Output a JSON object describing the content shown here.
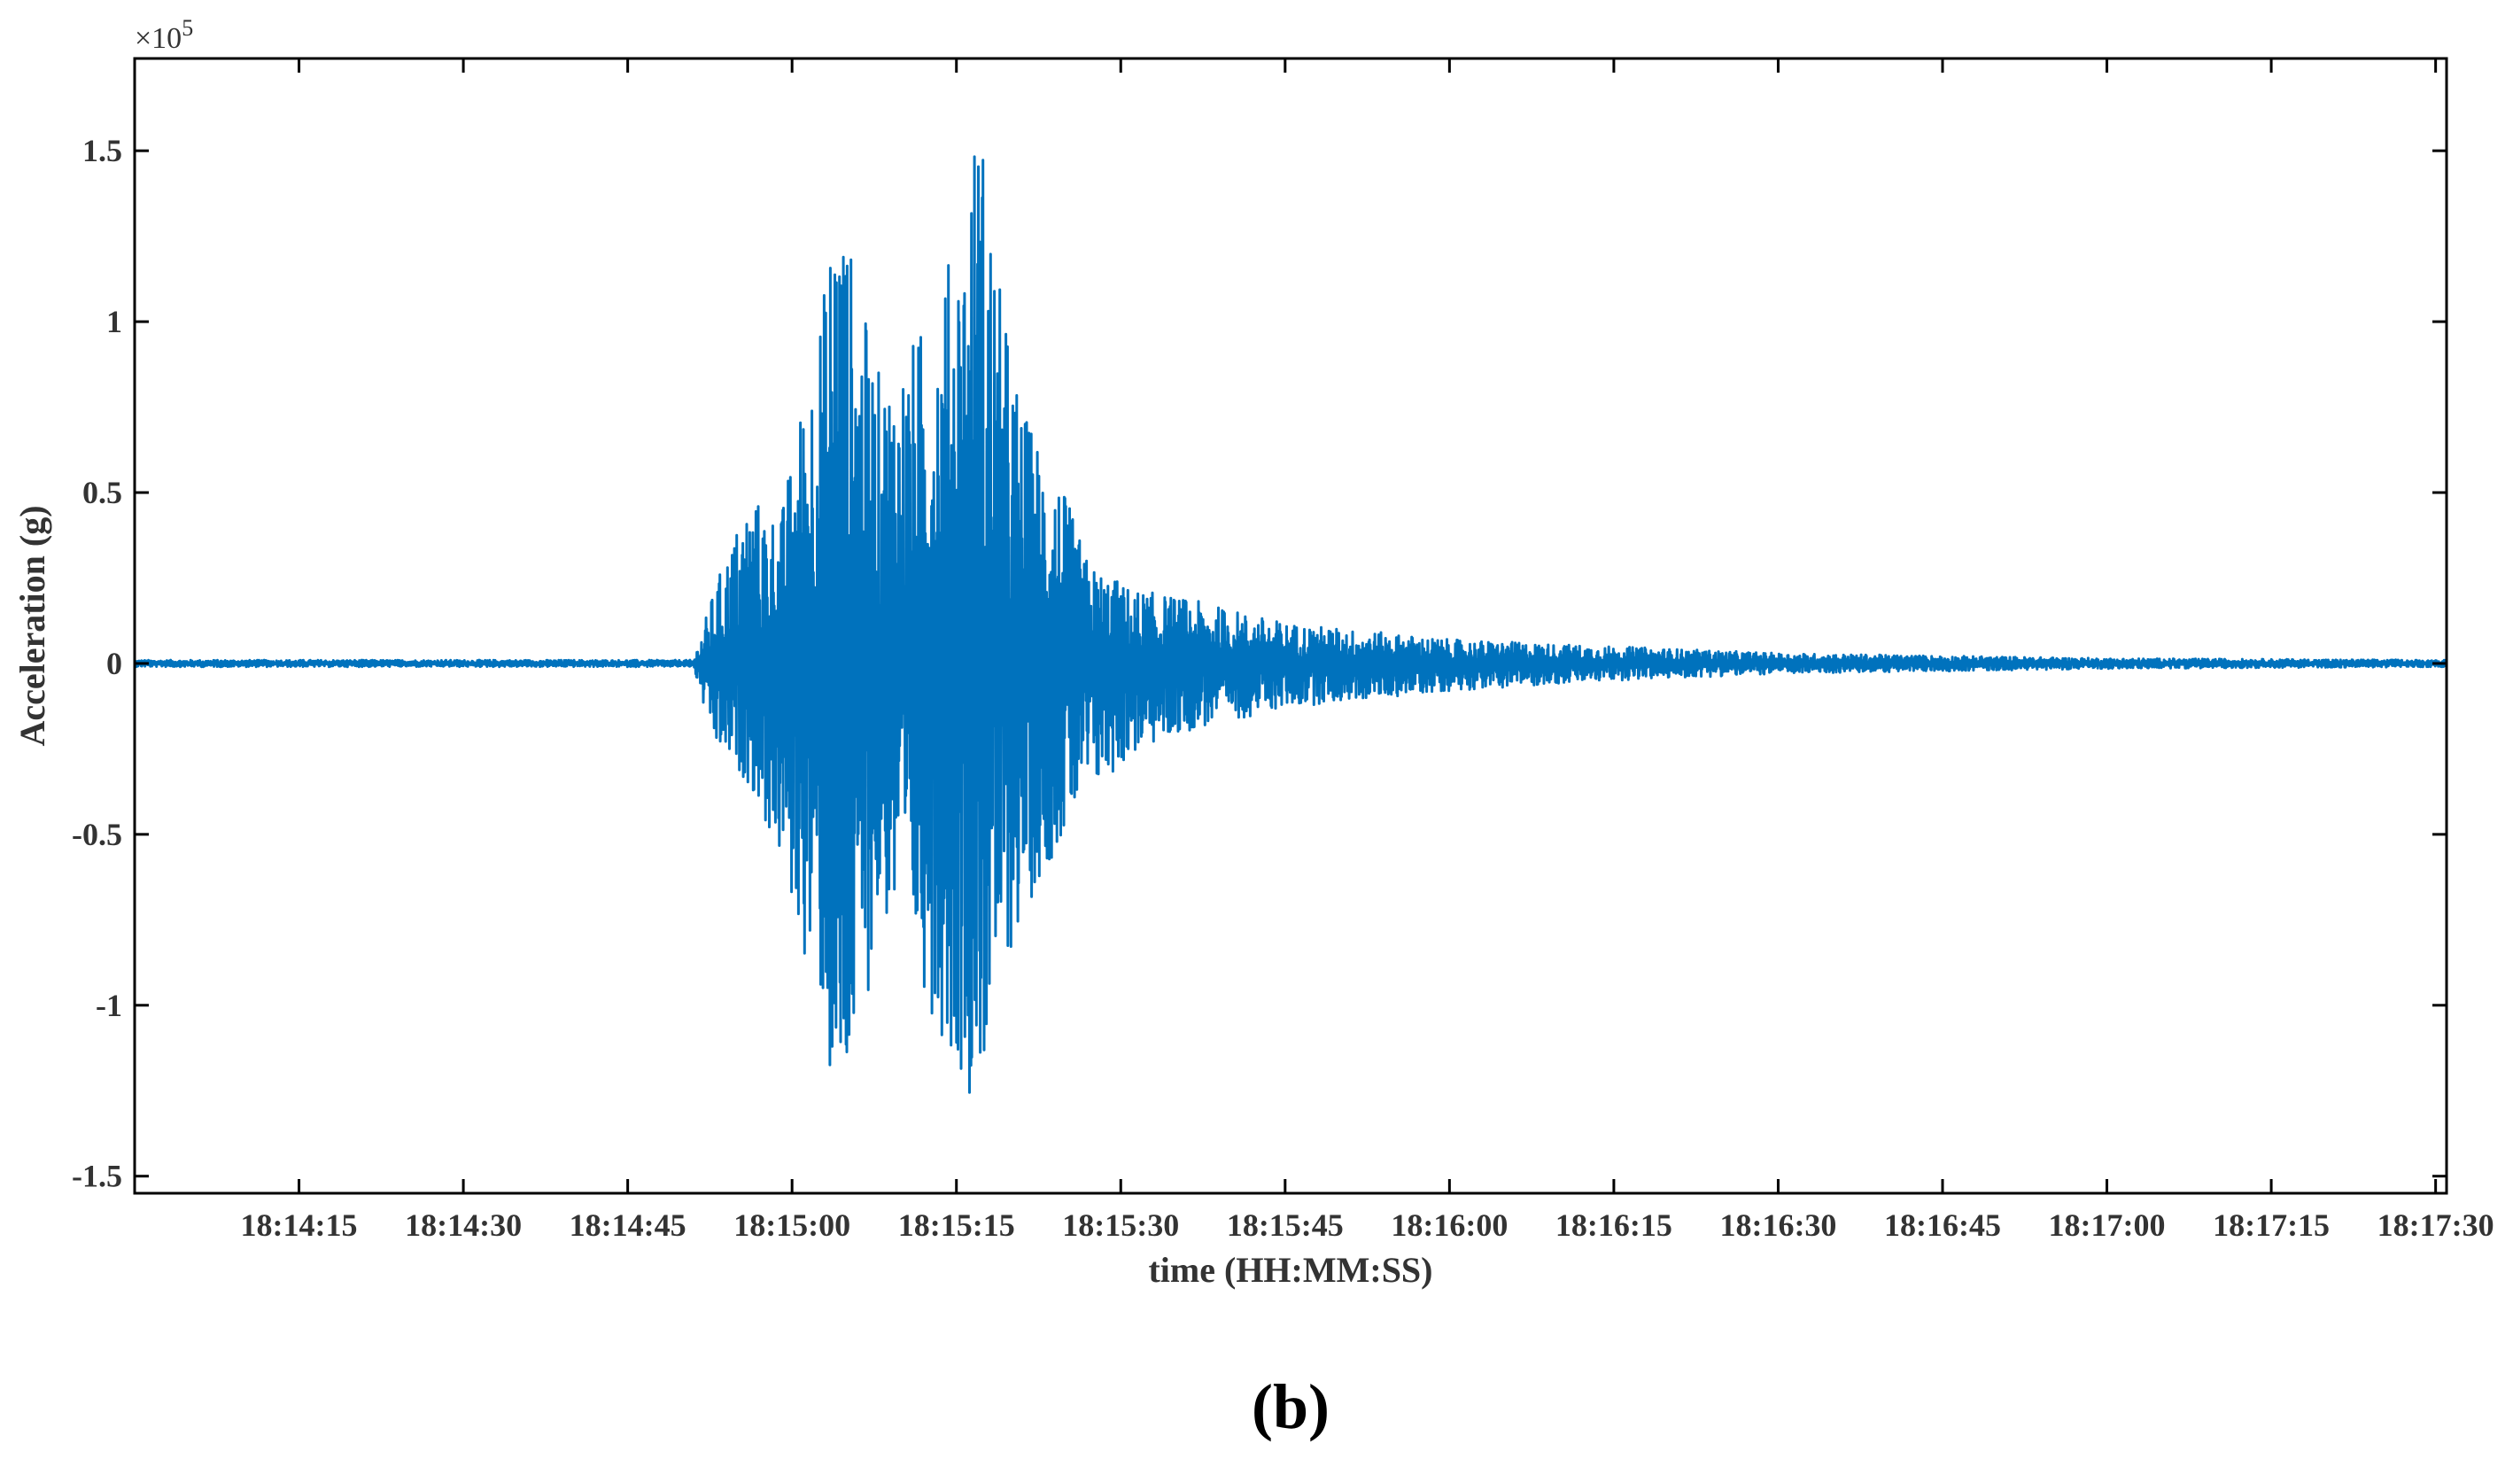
{
  "chart_data": {
    "type": "line",
    "title": "",
    "xlabel": "time (HH:MM:SS)",
    "ylabel": "Acceleration (g)",
    "y_multiplier_label": "×10",
    "y_multiplier_exponent": "5",
    "panel_label": "(b)",
    "xlim": [
      "18:14:00",
      "18:17:31"
    ],
    "ylim": [
      -1.55,
      1.77
    ],
    "y_scale_factor": 100000,
    "x_ticks": [
      "18:14:15",
      "18:14:30",
      "18:14:45",
      "18:15:00",
      "18:15:15",
      "18:15:30",
      "18:15:45",
      "18:16:00",
      "18:16:15",
      "18:16:30",
      "18:16:45",
      "18:17:00",
      "18:17:15",
      "18:17:30"
    ],
    "y_ticks": [
      {
        "value": 1.5,
        "label": "1.5"
      },
      {
        "value": 1,
        "label": "1"
      },
      {
        "value": 0.5,
        "label": "0.5"
      },
      {
        "value": 0,
        "label": "0"
      },
      {
        "value": -0.5,
        "label": "-0.5"
      },
      {
        "value": -1,
        "label": "-1"
      },
      {
        "value": -1.5,
        "label": "-1.5"
      }
    ],
    "grid": false,
    "series": [
      {
        "color": "#0072bd",
        "envelope": [
          {
            "t": "18:14:00",
            "max": 0.01,
            "min": -0.01
          },
          {
            "t": "18:14:51",
            "max": 0.01,
            "min": -0.01
          },
          {
            "t": "18:14:52",
            "max": 0.12,
            "min": -0.14
          },
          {
            "t": "18:14:53",
            "max": 0.23,
            "min": -0.26
          },
          {
            "t": "18:14:56",
            "max": 0.5,
            "min": -0.35
          },
          {
            "t": "18:14:59",
            "max": 0.44,
            "min": -0.6
          },
          {
            "t": "18:15:01",
            "max": 0.8,
            "min": -0.85
          },
          {
            "t": "18:15:03",
            "max": 1.12,
            "min": -1.05
          },
          {
            "t": "18:15:04",
            "max": 1.5,
            "min": -1.55
          },
          {
            "t": "18:15:06",
            "max": 1.1,
            "min": -1.15
          },
          {
            "t": "18:15:08",
            "max": 0.85,
            "min": -0.75
          },
          {
            "t": "18:15:11",
            "max": 0.95,
            "min": -0.85
          },
          {
            "t": "18:15:13",
            "max": 1.05,
            "min": -1.05
          },
          {
            "t": "18:15:16",
            "max": 1.38,
            "min": -1.25
          },
          {
            "t": "18:15:17",
            "max": 1.7,
            "min": -1.28
          },
          {
            "t": "18:15:19",
            "max": 1.1,
            "min": -0.95
          },
          {
            "t": "18:15:21",
            "max": 0.75,
            "min": -0.75
          },
          {
            "t": "18:15:24",
            "max": 0.58,
            "min": -0.55
          },
          {
            "t": "18:15:27",
            "max": 0.3,
            "min": -0.4
          },
          {
            "t": "18:15:31",
            "max": 0.22,
            "min": -0.27
          },
          {
            "t": "18:15:36",
            "max": 0.19,
            "min": -0.2
          },
          {
            "t": "18:15:45",
            "max": 0.12,
            "min": -0.13
          },
          {
            "t": "18:16:00",
            "max": 0.07,
            "min": -0.08
          },
          {
            "t": "18:16:15",
            "max": 0.05,
            "min": -0.05
          },
          {
            "t": "18:16:30",
            "max": 0.03,
            "min": -0.03
          },
          {
            "t": "18:17:00",
            "max": 0.015,
            "min": -0.015
          },
          {
            "t": "18:17:31",
            "max": 0.01,
            "min": -0.01
          }
        ]
      }
    ]
  }
}
